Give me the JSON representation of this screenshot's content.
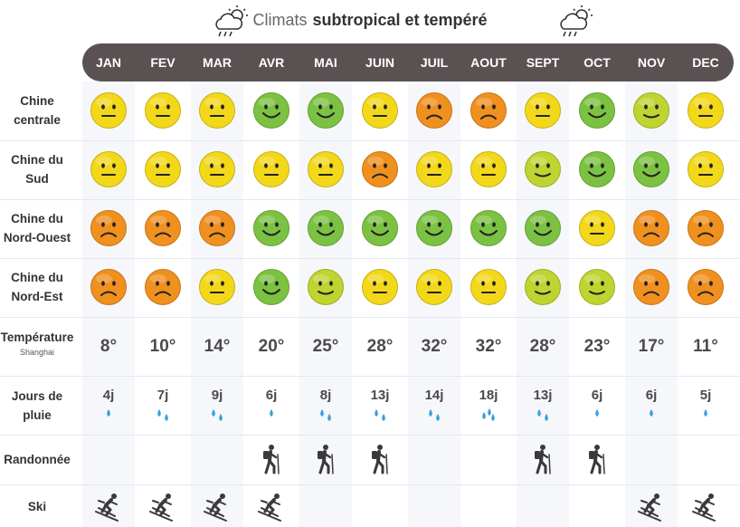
{
  "title": {
    "light": "Climats",
    "bold": "subtropical et tempéré"
  },
  "months": [
    "JAN",
    "FEV",
    "MAR",
    "AVR",
    "MAI",
    "JUIN",
    "JUIL",
    "AOUT",
    "SEPT",
    "OCT",
    "NOV",
    "DEC"
  ],
  "regions": [
    {
      "line1": "Chine",
      "line2": "centrale",
      "ratings": [
        "neutral",
        "neutral",
        "neutral",
        "good",
        "good",
        "neutral",
        "bad",
        "bad",
        "neutral",
        "good",
        "fair",
        "neutral"
      ]
    },
    {
      "line1": "Chine du",
      "line2": "Sud",
      "ratings": [
        "neutral",
        "neutral",
        "neutral",
        "neutral",
        "neutral",
        "bad",
        "neutral",
        "neutral",
        "fair",
        "good",
        "good",
        "neutral"
      ]
    },
    {
      "line1": "Chine du",
      "line2": "Nord-Ouest",
      "ratings": [
        "bad",
        "bad",
        "bad",
        "good",
        "good",
        "good",
        "good",
        "good",
        "good",
        "neutral",
        "bad",
        "bad"
      ]
    },
    {
      "line1": "Chine du",
      "line2": "Nord-Est",
      "ratings": [
        "bad",
        "bad",
        "neutral",
        "good",
        "fair",
        "neutral",
        "neutral",
        "neutral",
        "fair",
        "fair",
        "bad",
        "bad"
      ]
    }
  ],
  "temperature": {
    "label": "Température",
    "sublabel": "Shanghai",
    "values": [
      "8°",
      "10°",
      "14°",
      "20°",
      "25°",
      "28°",
      "32°",
      "32°",
      "28°",
      "23°",
      "17°",
      "11°"
    ]
  },
  "rain": {
    "label_line1": "Jours de",
    "label_line2": "pluie",
    "values": [
      "4j",
      "7j",
      "9j",
      "6j",
      "8j",
      "13j",
      "14j",
      "18j",
      "13j",
      "6j",
      "6j",
      "5j"
    ],
    "drops": [
      1,
      2,
      2,
      1,
      2,
      2,
      2,
      3,
      2,
      1,
      1,
      1
    ]
  },
  "hiking": {
    "label": "Randonnée",
    "months": [
      false,
      false,
      false,
      true,
      true,
      true,
      false,
      false,
      true,
      true,
      false,
      false
    ]
  },
  "ski": {
    "label": "Ski",
    "months": [
      true,
      true,
      true,
      true,
      false,
      false,
      false,
      false,
      false,
      false,
      true,
      true
    ]
  },
  "colors": {
    "good": "#7cc242",
    "neutral": "#f3d81a",
    "bad": "#f0901f",
    "fair": "#bfd430",
    "header": "#5a5252",
    "drop": "#3aa0dc"
  }
}
